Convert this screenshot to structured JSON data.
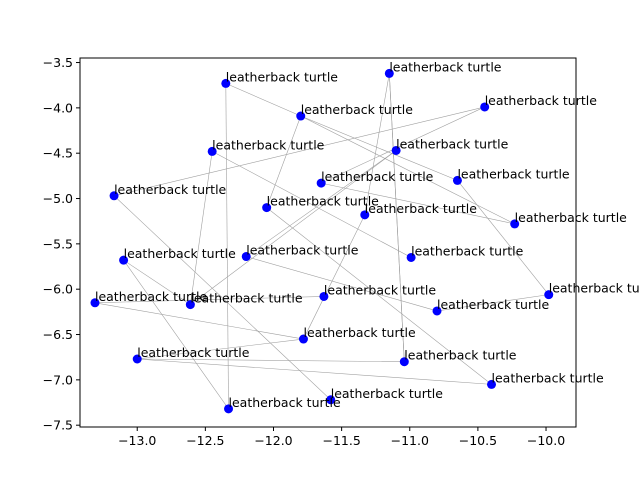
{
  "chart_data": {
    "type": "scatter",
    "title": "",
    "xlabel": "",
    "ylabel": "",
    "xlim": [
      -13.42,
      -9.78
    ],
    "ylim": [
      -7.52,
      -3.45
    ],
    "xticks": [
      "−13.0",
      "−12.5",
      "−12.0",
      "−11.5",
      "−11.0",
      "−10.5",
      "−10.0"
    ],
    "xtick_values": [
      -13.0,
      -12.5,
      -12.0,
      -11.5,
      -11.0,
      -10.5,
      -10.0
    ],
    "yticks": [
      "−3.5",
      "−4.0",
      "−4.5",
      "−5.0",
      "−5.5",
      "−6.0",
      "−6.5",
      "−7.0",
      "−7.5"
    ],
    "ytick_values": [
      -3.5,
      -4.0,
      -4.5,
      -5.0,
      -5.5,
      -6.0,
      -6.5,
      -7.0,
      -7.5
    ],
    "grid": false,
    "point_color": "#0000ff",
    "edge_color": "#a0a0a0",
    "points": [
      {
        "x": -11.15,
        "y": -3.62,
        "label": "leatherback turtle"
      },
      {
        "x": -12.35,
        "y": -3.73,
        "label": "leatherback turtle"
      },
      {
        "x": -10.45,
        "y": -3.99,
        "label": "leatherback turtle"
      },
      {
        "x": -11.8,
        "y": -4.09,
        "label": "leatherback turtle"
      },
      {
        "x": -11.1,
        "y": -4.47,
        "label": "leatherback turtle"
      },
      {
        "x": -12.45,
        "y": -4.48,
        "label": "leatherback turtle"
      },
      {
        "x": -10.65,
        "y": -4.8,
        "label": "leatherback turtle"
      },
      {
        "x": -11.65,
        "y": -4.83,
        "label": "leatherback turtle"
      },
      {
        "x": -13.17,
        "y": -4.97,
        "label": "leatherback turtle"
      },
      {
        "x": -12.05,
        "y": -5.1,
        "label": "leatherback turtle"
      },
      {
        "x": -11.33,
        "y": -5.18,
        "label": "leatherback turtle"
      },
      {
        "x": -10.23,
        "y": -5.28,
        "label": "leatherback turtle"
      },
      {
        "x": -12.2,
        "y": -5.64,
        "label": "leatherback turtle"
      },
      {
        "x": -10.99,
        "y": -5.65,
        "label": "leatherback turtle"
      },
      {
        "x": -13.1,
        "y": -5.68,
        "label": "leatherback turtle"
      },
      {
        "x": -9.98,
        "y": -6.06,
        "label": "leatherback turtle"
      },
      {
        "x": -11.63,
        "y": -6.08,
        "label": "leatherback turtle"
      },
      {
        "x": -13.31,
        "y": -6.15,
        "label": "leatherback turtle"
      },
      {
        "x": -12.61,
        "y": -6.17,
        "label": "leatherback turtle"
      },
      {
        "x": -10.8,
        "y": -6.24,
        "label": "leatherback turtle"
      },
      {
        "x": -11.78,
        "y": -6.55,
        "label": "leatherback turtle"
      },
      {
        "x": -13.0,
        "y": -6.77,
        "label": "leatherback turtle"
      },
      {
        "x": -11.04,
        "y": -6.8,
        "label": "leatherback turtle"
      },
      {
        "x": -10.4,
        "y": -7.05,
        "label": "leatherback turtle"
      },
      {
        "x": -11.58,
        "y": -7.22,
        "label": "leatherback turtle"
      },
      {
        "x": -12.33,
        "y": -7.32,
        "label": "leatherback turtle"
      }
    ],
    "edges": [
      [
        1,
        3
      ],
      [
        3,
        11
      ],
      [
        3,
        6
      ],
      [
        3,
        9
      ],
      [
        0,
        10
      ],
      [
        0,
        22
      ],
      [
        2,
        8
      ],
      [
        2,
        7
      ],
      [
        4,
        12
      ],
      [
        4,
        18
      ],
      [
        5,
        18
      ],
      [
        5,
        13
      ],
      [
        7,
        11
      ],
      [
        8,
        24
      ],
      [
        9,
        23
      ],
      [
        10,
        20
      ],
      [
        12,
        19
      ],
      [
        14,
        18
      ],
      [
        14,
        25
      ],
      [
        15,
        19
      ],
      [
        15,
        6
      ],
      [
        16,
        17
      ],
      [
        17,
        20
      ],
      [
        21,
        20
      ],
      [
        21,
        23
      ],
      [
        22,
        21
      ],
      [
        22,
        0
      ],
      [
        1,
        25
      ]
    ]
  }
}
